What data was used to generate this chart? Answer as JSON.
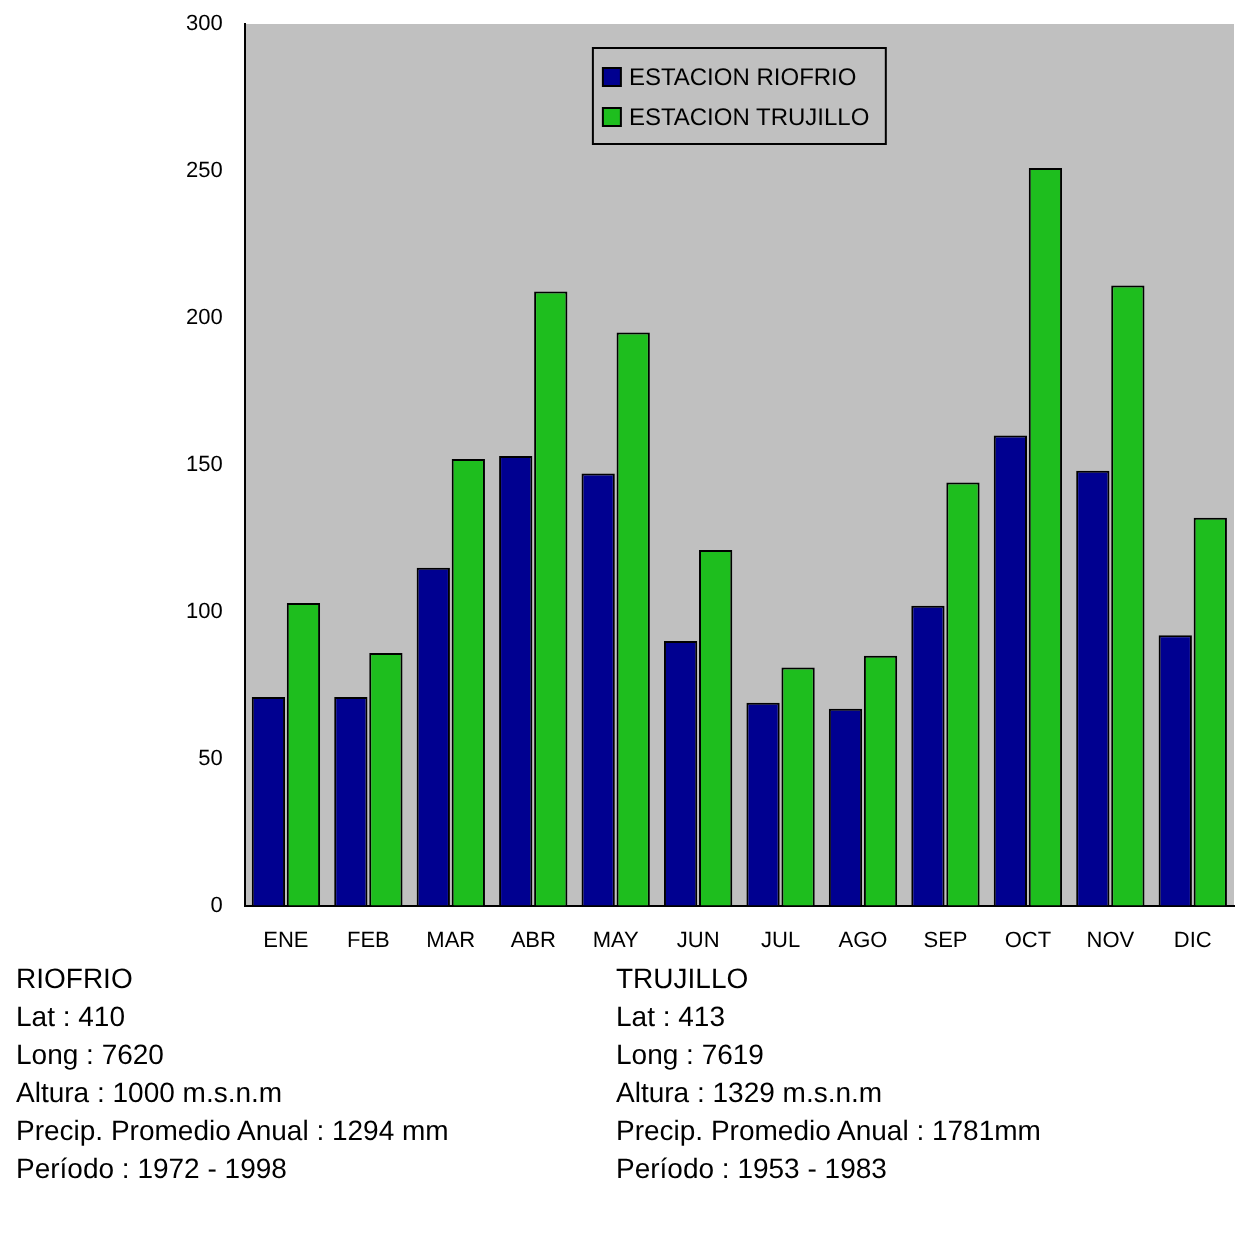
{
  "chart_data": {
    "type": "bar",
    "categories": [
      "ENE",
      "FEB",
      "MAR",
      "ABR",
      "MAY",
      "JUN",
      "JUL",
      "AGO",
      "SEP",
      "OCT",
      "NOV",
      "DIC"
    ],
    "series": [
      {
        "name": "ESTACION RIOFRIO",
        "color": "#000090",
        "values": [
          71,
          71,
          115,
          153,
          147,
          90,
          69,
          67,
          102,
          160,
          148,
          92
        ]
      },
      {
        "name": "ESTACION TRUJILLO",
        "color": "#1ebe1e",
        "values": [
          103,
          86,
          152,
          209,
          195,
          121,
          81,
          85,
          144,
          251,
          211,
          132
        ]
      }
    ],
    "ylim": [
      0,
      300
    ],
    "yticks": [
      0,
      50,
      100,
      150,
      200,
      250,
      300
    ],
    "grid": false,
    "legend": "top",
    "annotations": [
      "RIOFRIO",
      "Lat : 410",
      "Long : 7620",
      "Altura : 1000 m.s.n.m",
      "Precip. Promedio Anual : 1294 mm",
      "Período : 1972 - 1998",
      "TRUJILLO",
      "Lat : 413",
      "Long : 7619",
      "Altura : 1329 m.s.n.m",
      "Precip. Promedio Anual : 1781mm",
      "Período : 1953 - 1983"
    ]
  }
}
